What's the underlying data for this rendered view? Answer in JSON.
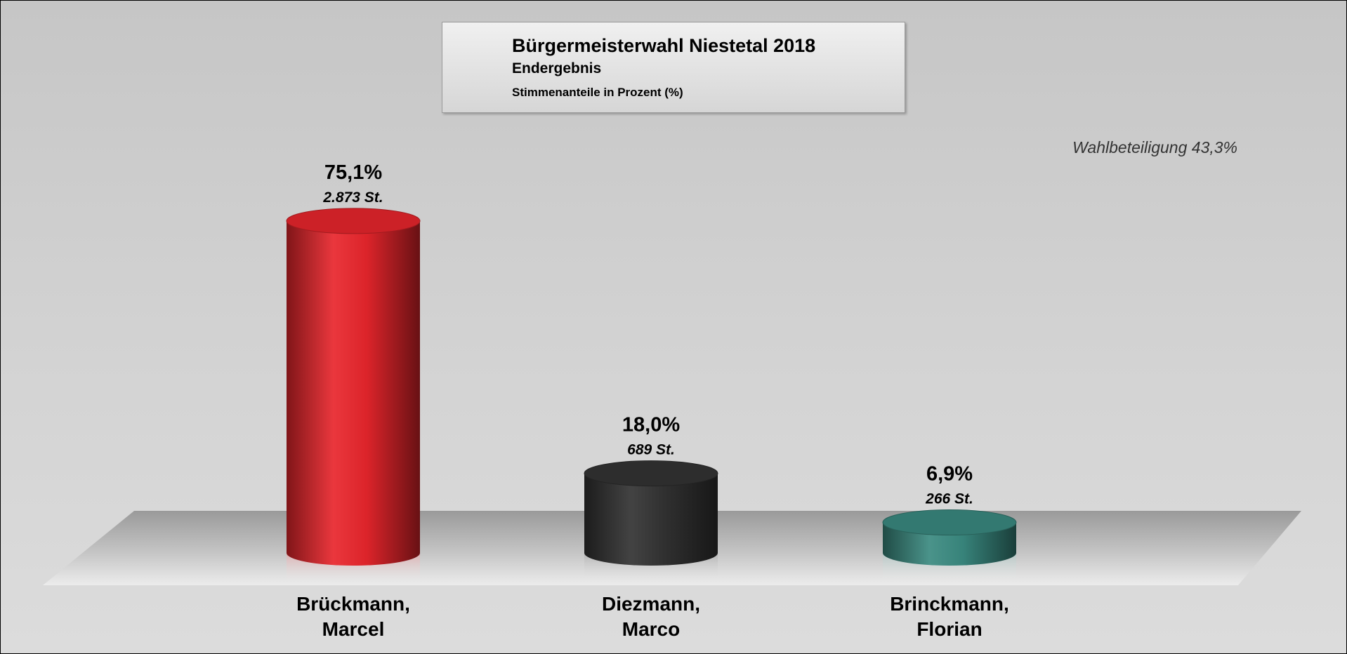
{
  "chart_data": {
    "type": "bar",
    "title": "Bürgermeisterwahl Niestetal 2018",
    "subtitle": "Endergebnis",
    "note": "Stimmenanteile in Prozent (%)",
    "annotation": "Wahlbeteiligung 43,3%",
    "categories": [
      {
        "line1": "Brückmann,",
        "line2": "Marcel"
      },
      {
        "line1": "Diezmann,",
        "line2": "Marco"
      },
      {
        "line1": "Brinckmann,",
        "line2": "Florian"
      }
    ],
    "values": [
      75.1,
      18.0,
      6.9
    ],
    "value_labels": [
      "75,1%",
      "18,0%",
      "6,9%"
    ],
    "votes": [
      2873,
      689,
      266
    ],
    "vote_labels": [
      "2.873 St.",
      "689 St.",
      "266 St."
    ],
    "colors": [
      "#e8262c",
      "#333333",
      "#3a8a80"
    ],
    "ylim": [
      0,
      80
    ],
    "grid": false,
    "legend": "none",
    "style": "3d-cylinder"
  }
}
